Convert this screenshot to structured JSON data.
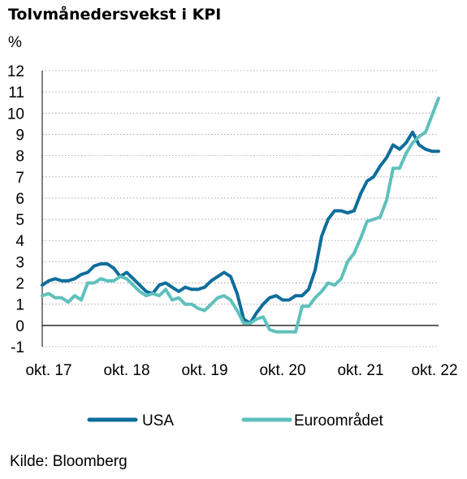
{
  "chart_data": {
    "type": "line",
    "title": "Tolvmånedersvekst i KPI",
    "ylabel": "%",
    "xlabel": "",
    "ylim": [
      -1,
      12
    ],
    "y_ticks": [
      -1,
      0,
      1,
      2,
      3,
      4,
      5,
      6,
      7,
      8,
      9,
      10,
      11,
      12
    ],
    "y_tick_labels": [
      "-1",
      "0",
      "1",
      "2",
      "3",
      "4",
      "5",
      "6",
      "7",
      "8",
      "9",
      "10",
      "11",
      "12"
    ],
    "x_range": [
      "2017-09",
      "2022-10"
    ],
    "x_ticks": [
      {
        "date": "2017-10",
        "label": "okt. 17"
      },
      {
        "date": "2018-10",
        "label": "okt. 18"
      },
      {
        "date": "2019-10",
        "label": "okt. 19"
      },
      {
        "date": "2020-10",
        "label": "okt. 20"
      },
      {
        "date": "2021-10",
        "label": "okt. 21"
      },
      {
        "date": "2022-10",
        "label": "okt. 22"
      }
    ],
    "grid": "horizontal-dotted",
    "legend_position": "bottom",
    "series": [
      {
        "name": "USA",
        "color": "#0e6d9c",
        "points": [
          [
            "2017-09",
            1.9
          ],
          [
            "2017-10",
            2.1
          ],
          [
            "2017-11",
            2.2
          ],
          [
            "2017-12",
            2.1
          ],
          [
            "2018-01",
            2.1
          ],
          [
            "2018-02",
            2.2
          ],
          [
            "2018-03",
            2.4
          ],
          [
            "2018-04",
            2.5
          ],
          [
            "2018-05",
            2.8
          ],
          [
            "2018-06",
            2.9
          ],
          [
            "2018-07",
            2.9
          ],
          [
            "2018-08",
            2.7
          ],
          [
            "2018-09",
            2.3
          ],
          [
            "2018-10",
            2.5
          ],
          [
            "2018-11",
            2.2
          ],
          [
            "2018-12",
            1.9
          ],
          [
            "2019-01",
            1.6
          ],
          [
            "2019-02",
            1.5
          ],
          [
            "2019-03",
            1.9
          ],
          [
            "2019-04",
            2.0
          ],
          [
            "2019-05",
            1.8
          ],
          [
            "2019-06",
            1.6
          ],
          [
            "2019-07",
            1.8
          ],
          [
            "2019-08",
            1.7
          ],
          [
            "2019-09",
            1.7
          ],
          [
            "2019-10",
            1.8
          ],
          [
            "2019-11",
            2.1
          ],
          [
            "2019-12",
            2.3
          ],
          [
            "2020-01",
            2.5
          ],
          [
            "2020-02",
            2.3
          ],
          [
            "2020-03",
            1.5
          ],
          [
            "2020-04",
            0.3
          ],
          [
            "2020-05",
            0.1
          ],
          [
            "2020-06",
            0.6
          ],
          [
            "2020-07",
            1.0
          ],
          [
            "2020-08",
            1.3
          ],
          [
            "2020-09",
            1.4
          ],
          [
            "2020-10",
            1.2
          ],
          [
            "2020-11",
            1.2
          ],
          [
            "2020-12",
            1.4
          ],
          [
            "2021-01",
            1.4
          ],
          [
            "2021-02",
            1.7
          ],
          [
            "2021-03",
            2.6
          ],
          [
            "2021-04",
            4.2
          ],
          [
            "2021-05",
            5.0
          ],
          [
            "2021-06",
            5.4
          ],
          [
            "2021-07",
            5.4
          ],
          [
            "2021-08",
            5.3
          ],
          [
            "2021-09",
            5.4
          ],
          [
            "2021-10",
            6.2
          ],
          [
            "2021-11",
            6.8
          ],
          [
            "2021-12",
            7.0
          ],
          [
            "2022-01",
            7.5
          ],
          [
            "2022-02",
            7.9
          ],
          [
            "2022-03",
            8.5
          ],
          [
            "2022-04",
            8.3
          ],
          [
            "2022-05",
            8.6
          ],
          [
            "2022-06",
            9.1
          ],
          [
            "2022-07",
            8.5
          ],
          [
            "2022-08",
            8.3
          ],
          [
            "2022-09",
            8.2
          ],
          [
            "2022-10",
            8.2
          ]
        ]
      },
      {
        "name": "Euroområdet",
        "color": "#5fc0bc",
        "points": [
          [
            "2017-09",
            1.4
          ],
          [
            "2017-10",
            1.5
          ],
          [
            "2017-11",
            1.3
          ],
          [
            "2017-12",
            1.3
          ],
          [
            "2018-01",
            1.1
          ],
          [
            "2018-02",
            1.4
          ],
          [
            "2018-03",
            1.2
          ],
          [
            "2018-04",
            2.0
          ],
          [
            "2018-05",
            2.0
          ],
          [
            "2018-06",
            2.2
          ],
          [
            "2018-07",
            2.1
          ],
          [
            "2018-08",
            2.1
          ],
          [
            "2018-09",
            2.3
          ],
          [
            "2018-10",
            2.2
          ],
          [
            "2018-11",
            1.9
          ],
          [
            "2018-12",
            1.6
          ],
          [
            "2019-01",
            1.4
          ],
          [
            "2019-02",
            1.5
          ],
          [
            "2019-03",
            1.4
          ],
          [
            "2019-04",
            1.7
          ],
          [
            "2019-05",
            1.2
          ],
          [
            "2019-06",
            1.3
          ],
          [
            "2019-07",
            1.0
          ],
          [
            "2019-08",
            1.0
          ],
          [
            "2019-09",
            0.8
          ],
          [
            "2019-10",
            0.7
          ],
          [
            "2019-11",
            1.0
          ],
          [
            "2019-12",
            1.3
          ],
          [
            "2020-01",
            1.4
          ],
          [
            "2020-02",
            1.2
          ],
          [
            "2020-03",
            0.7
          ],
          [
            "2020-04",
            0.1
          ],
          [
            "2020-05",
            0.1
          ],
          [
            "2020-06",
            0.3
          ],
          [
            "2020-07",
            0.4
          ],
          [
            "2020-08",
            -0.2
          ],
          [
            "2020-09",
            -0.3
          ],
          [
            "2020-10",
            -0.3
          ],
          [
            "2020-11",
            -0.3
          ],
          [
            "2020-12",
            -0.3
          ],
          [
            "2021-01",
            0.9
          ],
          [
            "2021-02",
            0.9
          ],
          [
            "2021-03",
            1.3
          ],
          [
            "2021-04",
            1.6
          ],
          [
            "2021-05",
            2.0
          ],
          [
            "2021-06",
            1.9
          ],
          [
            "2021-07",
            2.2
          ],
          [
            "2021-08",
            3.0
          ],
          [
            "2021-09",
            3.4
          ],
          [
            "2021-10",
            4.1
          ],
          [
            "2021-11",
            4.9
          ],
          [
            "2021-12",
            5.0
          ],
          [
            "2022-01",
            5.1
          ],
          [
            "2022-02",
            5.9
          ],
          [
            "2022-03",
            7.4
          ],
          [
            "2022-04",
            7.4
          ],
          [
            "2022-05",
            8.1
          ],
          [
            "2022-06",
            8.6
          ],
          [
            "2022-07",
            8.9
          ],
          [
            "2022-08",
            9.1
          ],
          [
            "2022-09",
            9.9
          ],
          [
            "2022-10",
            10.7
          ]
        ]
      }
    ]
  },
  "source": "Kilde: Bloomberg"
}
